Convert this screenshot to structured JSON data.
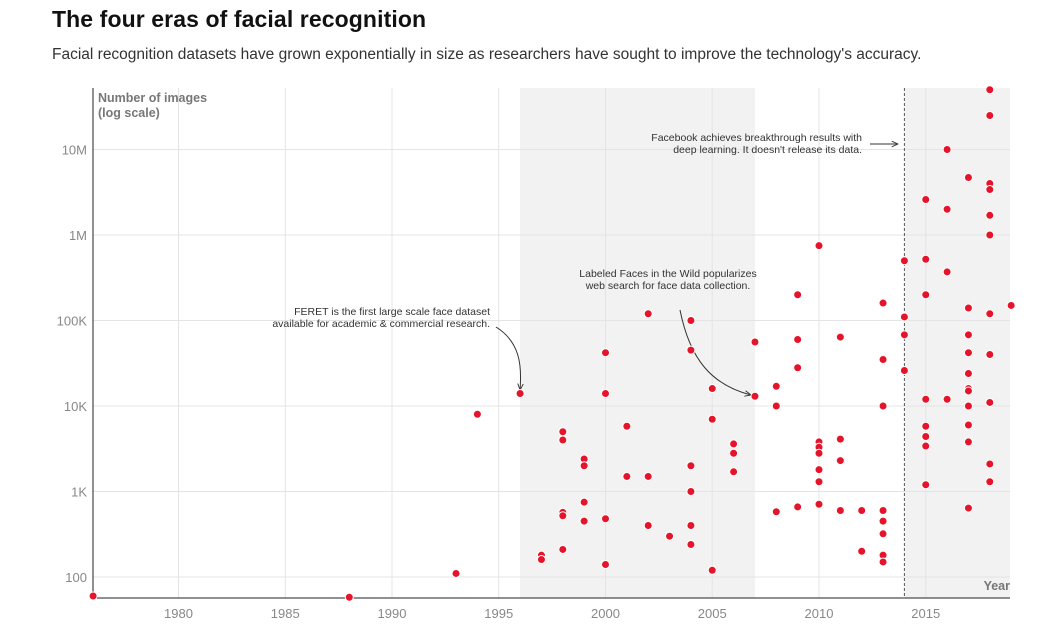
{
  "header": {
    "title": "The four eras of facial recognition",
    "subtitle": "Facial recognition datasets have grown exponentially in size as researchers have sought to improve the technology's accuracy."
  },
  "chart_data": {
    "type": "scatter",
    "title": "The four eras of facial recognition",
    "subtitle": "Facial recognition datasets have grown exponentially in size as researchers have sought to improve the technology's accuracy.",
    "ylabel": [
      "Number of images",
      "(log scale)"
    ],
    "xlabel": "Year",
    "y_scale": "log",
    "xlim": [
      1976,
      2019
    ],
    "ylim": [
      60,
      60000000
    ],
    "x_ticks": [
      1980,
      1985,
      1990,
      1995,
      2000,
      2005,
      2010,
      2015
    ],
    "y_ticks": [
      {
        "value": 100,
        "label": "100"
      },
      {
        "value": 1000,
        "label": "1K"
      },
      {
        "value": 10000,
        "label": "10K"
      },
      {
        "value": 100000,
        "label": "100K"
      },
      {
        "value": 1000000,
        "label": "1M"
      },
      {
        "value": 10000000,
        "label": "10M"
      }
    ],
    "grid": true,
    "point_color": "#e5142b",
    "shaded_eras": [
      {
        "from": 1996,
        "to": 2007
      },
      {
        "from": 2014,
        "to": 2019
      }
    ],
    "marker_line": {
      "x": 2014,
      "style": "dashed"
    },
    "annotations": [
      {
        "lines": [
          "FERET is the first large scale face dataset",
          "available for academic & commercial research."
        ],
        "x": 1996,
        "y": 14000
      },
      {
        "lines": [
          "Labeled Faces in the Wild popularizes",
          "web search for face data collection."
        ],
        "x": 2007,
        "y": 13000
      },
      {
        "lines": [
          "Facebook achieves breakthrough results with",
          "deep learning. It doesn't release its data."
        ],
        "x": 2014,
        "y": 11000000
      }
    ],
    "points": [
      [
        1976,
        60
      ],
      [
        1988,
        58
      ],
      [
        1993,
        110
      ],
      [
        1994,
        8000
      ],
      [
        1996,
        14000
      ],
      [
        1997,
        180
      ],
      [
        1997,
        160
      ],
      [
        1998,
        5000
      ],
      [
        1998,
        4000
      ],
      [
        1998,
        570
      ],
      [
        1998,
        520
      ],
      [
        1998,
        210
      ],
      [
        1999,
        2400
      ],
      [
        1999,
        2000
      ],
      [
        1999,
        750
      ],
      [
        1999,
        450
      ],
      [
        2000,
        42000
      ],
      [
        2000,
        14000
      ],
      [
        2000,
        480
      ],
      [
        2000,
        140
      ],
      [
        2001,
        5800
      ],
      [
        2001,
        1500
      ],
      [
        2002,
        120000
      ],
      [
        2002,
        1500
      ],
      [
        2002,
        400
      ],
      [
        2003,
        300
      ],
      [
        2004,
        100000
      ],
      [
        2004,
        45000
      ],
      [
        2004,
        2000
      ],
      [
        2004,
        1000
      ],
      [
        2004,
        400
      ],
      [
        2004,
        240
      ],
      [
        2005,
        16000
      ],
      [
        2005,
        7000
      ],
      [
        2005,
        120
      ],
      [
        2006,
        3600
      ],
      [
        2006,
        2800
      ],
      [
        2006,
        1700
      ],
      [
        2007,
        56000
      ],
      [
        2007,
        13000
      ],
      [
        2008,
        17000
      ],
      [
        2008,
        10000
      ],
      [
        2008,
        580
      ],
      [
        2009,
        200000
      ],
      [
        2009,
        60000
      ],
      [
        2009,
        28000
      ],
      [
        2009,
        660
      ],
      [
        2010,
        750000
      ],
      [
        2010,
        3800
      ],
      [
        2010,
        3300
      ],
      [
        2010,
        2800
      ],
      [
        2010,
        1800
      ],
      [
        2010,
        1300
      ],
      [
        2010,
        710
      ],
      [
        2011,
        64000
      ],
      [
        2011,
        4100
      ],
      [
        2011,
        2300
      ],
      [
        2011,
        600
      ],
      [
        2012,
        600
      ],
      [
        2012,
        200
      ],
      [
        2013,
        160000
      ],
      [
        2013,
        35000
      ],
      [
        2013,
        10000
      ],
      [
        2013,
        600
      ],
      [
        2013,
        450
      ],
      [
        2013,
        320
      ],
      [
        2013,
        180
      ],
      [
        2013,
        150
      ],
      [
        2014,
        500000
      ],
      [
        2014,
        110000
      ],
      [
        2014,
        68000
      ],
      [
        2014,
        26000
      ],
      [
        2015,
        2600000
      ],
      [
        2015,
        520000
      ],
      [
        2015,
        200000
      ],
      [
        2015,
        12000
      ],
      [
        2015,
        5800
      ],
      [
        2015,
        4400
      ],
      [
        2015,
        3400
      ],
      [
        2015,
        1200
      ],
      [
        2016,
        10000000
      ],
      [
        2016,
        2000000
      ],
      [
        2016,
        370000
      ],
      [
        2016,
        12000
      ],
      [
        2017,
        4700000
      ],
      [
        2017,
        140000
      ],
      [
        2017,
        68000
      ],
      [
        2017,
        42000
      ],
      [
        2017,
        24000
      ],
      [
        2017,
        16000
      ],
      [
        2017,
        15000
      ],
      [
        2017,
        10000
      ],
      [
        2017,
        6000
      ],
      [
        2017,
        3800
      ],
      [
        2017,
        640
      ],
      [
        2018,
        50000000
      ],
      [
        2018,
        25000000
      ],
      [
        2018,
        4000000
      ],
      [
        2018,
        3400000
      ],
      [
        2018,
        1700000
      ],
      [
        2018,
        1000000
      ],
      [
        2018,
        120000
      ],
      [
        2018,
        40000
      ],
      [
        2018,
        11000
      ],
      [
        2018,
        2100
      ],
      [
        2018,
        1300
      ],
      [
        2019,
        150000
      ]
    ]
  }
}
